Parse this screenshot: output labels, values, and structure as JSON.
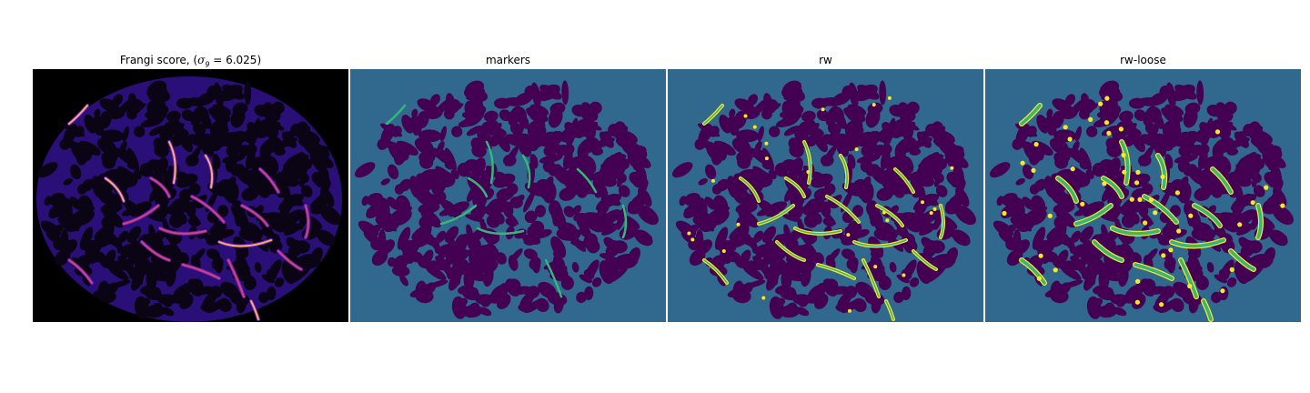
{
  "panels": [
    {
      "title_prefix": "Frangi score, (",
      "title_symbol": "σ",
      "title_subscript": "9",
      "title_suffix": " = 6.025)",
      "colormap": "magma",
      "colors": {
        "background": "#000000",
        "tissue": "#2a0f78",
        "ridge": "#6a1fbf",
        "ridge_hot": "#d3436e",
        "peak": "#fcae62"
      }
    },
    {
      "title": "markers",
      "colors": {
        "background": "#31688e",
        "foreground": "#440154",
        "marker": "#35b779"
      }
    },
    {
      "title": "rw",
      "colors": {
        "background": "#31688e",
        "foreground": "#440154",
        "vessel": "#fde725",
        "vessel_core": "#35b779"
      }
    },
    {
      "title": "rw-loose",
      "colors": {
        "background": "#31688e",
        "foreground": "#440154",
        "vessel": "#fde725",
        "vessel_core": "#35b779"
      }
    }
  ]
}
